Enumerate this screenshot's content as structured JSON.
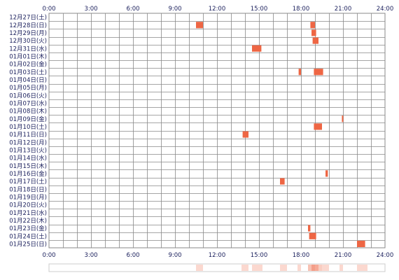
{
  "chart_data": {
    "type": "heatmap",
    "x_ticks": [
      "0:00",
      "3:00",
      "6:00",
      "9:00",
      "12:00",
      "15:00",
      "18:00",
      "21:00",
      "24:00"
    ],
    "xlim": [
      0,
      24
    ],
    "rows": [
      "12月27日(土)",
      "12月28日(日)",
      "12月29日(月)",
      "12月30日(火)",
      "12月31日(水)",
      "01月01日(木)",
      "01月02日(金)",
      "01月03日(土)",
      "01月04日(日)",
      "01月05日(月)",
      "01月06日(火)",
      "01月07日(水)",
      "01月08日(木)",
      "01月09日(金)",
      "01月10日(土)",
      "01月11日(日)",
      "01月12日(月)",
      "01月13日(火)",
      "01月14日(水)",
      "01月15日(木)",
      "01月16日(金)",
      "01月17日(土)",
      "01月18日(日)",
      "01月19日(月)",
      "01月20日(火)",
      "01月21日(水)",
      "01月22日(木)",
      "01月23日(金)",
      "01月24日(土)",
      "01月25日(日)"
    ],
    "events": [
      {
        "row": 1,
        "start": 10.5,
        "end": 11.0
      },
      {
        "row": 1,
        "start": 18.67,
        "end": 19.0
      },
      {
        "row": 2,
        "start": 18.75,
        "end": 19.08
      },
      {
        "row": 3,
        "start": 18.83,
        "end": 19.25
      },
      {
        "row": 4,
        "start": 14.5,
        "end": 15.17
      },
      {
        "row": 7,
        "start": 17.83,
        "end": 18.0
      },
      {
        "row": 7,
        "start": 18.92,
        "end": 19.58
      },
      {
        "row": 13,
        "start": 20.92,
        "end": 21.0
      },
      {
        "row": 14,
        "start": 18.92,
        "end": 19.5
      },
      {
        "row": 15,
        "start": 13.83,
        "end": 14.25
      },
      {
        "row": 20,
        "start": 19.75,
        "end": 19.92
      },
      {
        "row": 21,
        "start": 16.5,
        "end": 16.83
      },
      {
        "row": 27,
        "start": 18.5,
        "end": 18.67
      },
      {
        "row": 28,
        "start": 18.58,
        "end": 19.08
      },
      {
        "row": 29,
        "start": 22.0,
        "end": 22.58
      }
    ],
    "colors": {
      "event": "#ee6644",
      "grid": "#888888",
      "text": "#1a1f5c",
      "summary_border": "#cccccc"
    }
  }
}
